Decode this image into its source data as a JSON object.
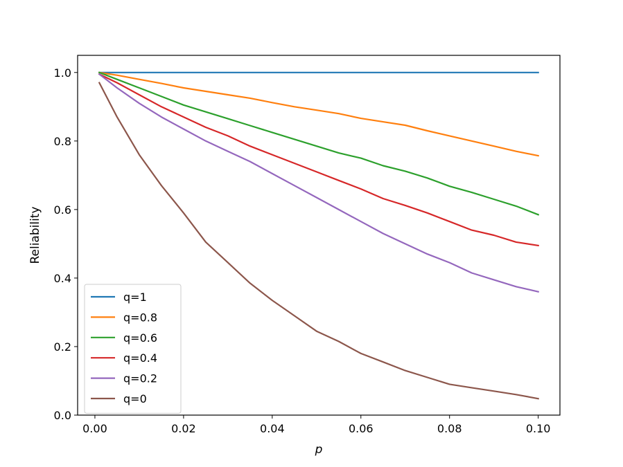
{
  "chart_data": {
    "type": "line",
    "title": "",
    "xlabel": "p",
    "ylabel": "Reliability",
    "xlim": [
      -0.0039,
      0.1049
    ],
    "ylim": [
      0.0,
      1.05
    ],
    "xticks": [
      0.0,
      0.02,
      0.04,
      0.06,
      0.08,
      0.1
    ],
    "xtick_labels": [
      "0.00",
      "0.02",
      "0.04",
      "0.06",
      "0.08",
      "0.10"
    ],
    "yticks": [
      0.0,
      0.2,
      0.4,
      0.6,
      0.8,
      1.0
    ],
    "ytick_labels": [
      "0.0",
      "0.2",
      "0.4",
      "0.6",
      "0.8",
      "1.0"
    ],
    "grid": false,
    "legend_position": "lower-left",
    "x": [
      0.001,
      0.005,
      0.01,
      0.015,
      0.02,
      0.025,
      0.03,
      0.035,
      0.04,
      0.045,
      0.05,
      0.055,
      0.06,
      0.065,
      0.07,
      0.075,
      0.08,
      0.085,
      0.09,
      0.095,
      0.1
    ],
    "series": [
      {
        "name": "q=1",
        "color": "#1f77b4",
        "values": [
          1.0,
          1.0,
          1.0,
          1.0,
          1.0,
          1.0,
          1.0,
          1.0,
          1.0,
          1.0,
          1.0,
          1.0,
          1.0,
          1.0,
          1.0,
          1.0,
          1.0,
          1.0,
          1.0,
          1.0,
          1.0
        ]
      },
      {
        "name": "q=0.8",
        "color": "#ff7f0e",
        "values": [
          1.0,
          0.992,
          0.98,
          0.968,
          0.955,
          0.945,
          0.935,
          0.925,
          0.912,
          0.9,
          0.89,
          0.88,
          0.866,
          0.856,
          0.846,
          0.83,
          0.815,
          0.8,
          0.785,
          0.77,
          0.757
        ]
      },
      {
        "name": "q=0.6",
        "color": "#2ca02c",
        "values": [
          1.0,
          0.98,
          0.955,
          0.93,
          0.905,
          0.885,
          0.865,
          0.845,
          0.825,
          0.805,
          0.785,
          0.765,
          0.75,
          0.728,
          0.712,
          0.692,
          0.668,
          0.65,
          0.63,
          0.61,
          0.585
        ]
      },
      {
        "name": "q=0.4",
        "color": "#d62728",
        "values": [
          0.995,
          0.97,
          0.935,
          0.9,
          0.87,
          0.84,
          0.815,
          0.785,
          0.76,
          0.735,
          0.71,
          0.685,
          0.66,
          0.632,
          0.612,
          0.59,
          0.565,
          0.54,
          0.525,
          0.505,
          0.495
        ]
      },
      {
        "name": "q=0.2",
        "color": "#9467bd",
        "values": [
          0.995,
          0.955,
          0.91,
          0.87,
          0.835,
          0.8,
          0.77,
          0.74,
          0.705,
          0.67,
          0.635,
          0.6,
          0.565,
          0.53,
          0.5,
          0.47,
          0.445,
          0.415,
          0.395,
          0.375,
          0.36
        ]
      },
      {
        "name": "q=0",
        "color": "#8c564b",
        "values": [
          0.97,
          0.87,
          0.76,
          0.67,
          0.59,
          0.505,
          0.445,
          0.385,
          0.335,
          0.29,
          0.245,
          0.215,
          0.18,
          0.155,
          0.13,
          0.11,
          0.09,
          0.08,
          0.07,
          0.06,
          0.048
        ]
      }
    ]
  }
}
